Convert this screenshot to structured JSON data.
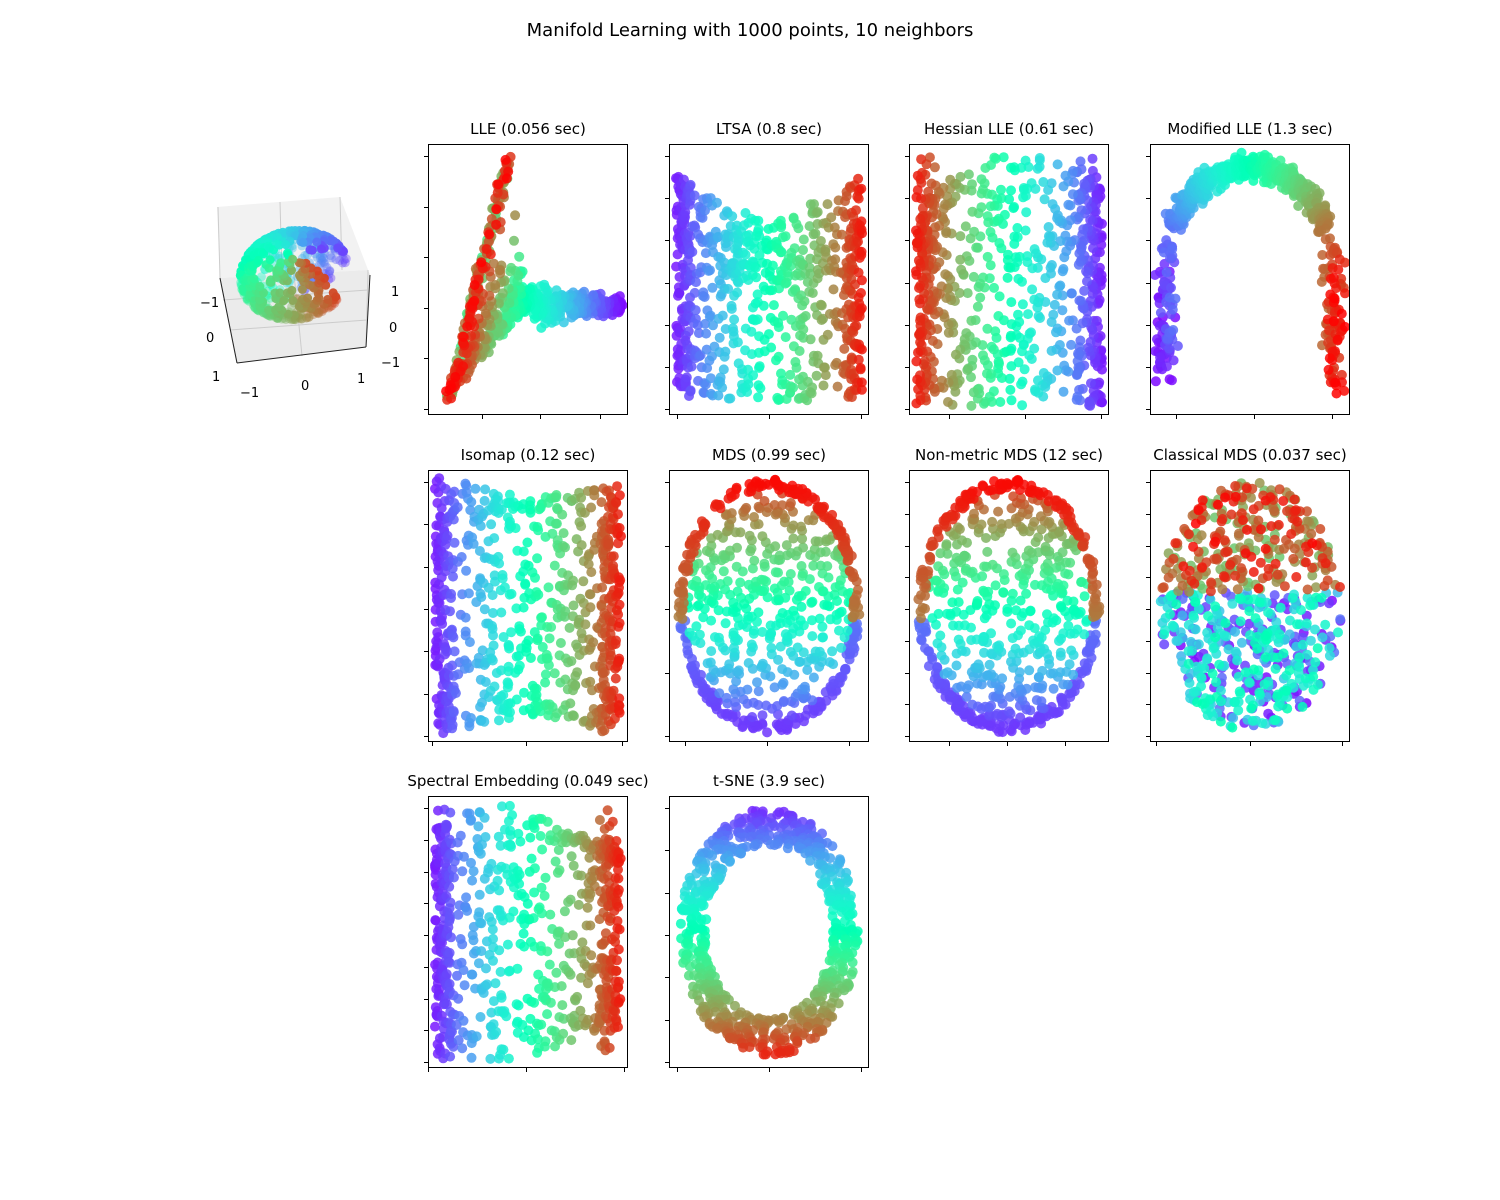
{
  "figure": {
    "suptitle": "Manifold Learning with 1000 points, 10 neighbors",
    "colormap": "rainbow",
    "marker_size": 50
  },
  "chart_data": [
    {
      "type": "scatter3d",
      "title": "",
      "n_points": 1000,
      "description": "Severed sphere (S-curve-like) colored by rainbow colormap",
      "x_ticks": [
        "−1",
        "0",
        "1"
      ],
      "y_ticks": [
        "−1",
        "0",
        "1"
      ],
      "z_ticks": [
        "−1",
        "0",
        "1"
      ]
    },
    {
      "type": "scatter",
      "method": "LLE",
      "time_sec": 0.056,
      "title": "LLE (0.056 sec)",
      "shape": "triangle-fan",
      "x_ticks": 3,
      "y_ticks": 6,
      "tick_labels": false
    },
    {
      "type": "scatter",
      "method": "LTSA",
      "time_sec": 0.8,
      "title": "LTSA (0.8 sec)",
      "shape": "cup",
      "x_ticks": 3,
      "y_ticks": 7,
      "tick_labels": false
    },
    {
      "type": "scatter",
      "method": "Hessian LLE",
      "time_sec": 0.61,
      "title": "Hessian LLE (0.61 sec)",
      "shape": "dome",
      "x_ticks": 3,
      "y_ticks": 7,
      "tick_labels": false
    },
    {
      "type": "scatter",
      "method": "Modified LLE",
      "time_sec": 1.3,
      "title": "Modified LLE (1.3 sec)",
      "shape": "arch",
      "x_ticks": 3,
      "y_ticks": 7,
      "tick_labels": false
    },
    {
      "type": "scatter",
      "method": "Isomap",
      "time_sec": 0.12,
      "title": "Isomap (0.12 sec)",
      "shape": "hourglass-rect",
      "x_ticks": 3,
      "y_ticks": 7,
      "tick_labels": false
    },
    {
      "type": "scatter",
      "method": "MDS",
      "time_sec": 0.99,
      "title": "MDS (0.99 sec)",
      "shape": "ellipse-vertical",
      "x_ticks": 3,
      "y_ticks": 5,
      "tick_labels": false
    },
    {
      "type": "scatter",
      "method": "Non-metric MDS",
      "time_sec": 12,
      "title": "Non-metric MDS (12 sec)",
      "shape": "ellipse-vertical",
      "x_ticks": 3,
      "y_ticks": 9,
      "tick_labels": false
    },
    {
      "type": "scatter",
      "method": "Classical MDS",
      "time_sec": 0.037,
      "title": "Classical MDS (0.037 sec)",
      "shape": "ellipse-mixed",
      "x_ticks": 3,
      "y_ticks": 9,
      "tick_labels": false
    },
    {
      "type": "scatter",
      "method": "Spectral Embedding",
      "time_sec": 0.049,
      "title": "Spectral Embedding (0.049 sec)",
      "shape": "trapezoid",
      "x_ticks": 3,
      "y_ticks": 9,
      "tick_labels": false
    },
    {
      "type": "scatter",
      "method": "t-SNE",
      "time_sec": 3.9,
      "title": "t-SNE (3.9 sec)",
      "shape": "ring",
      "x_ticks": 3,
      "y_ticks": 7,
      "tick_labels": false
    }
  ]
}
